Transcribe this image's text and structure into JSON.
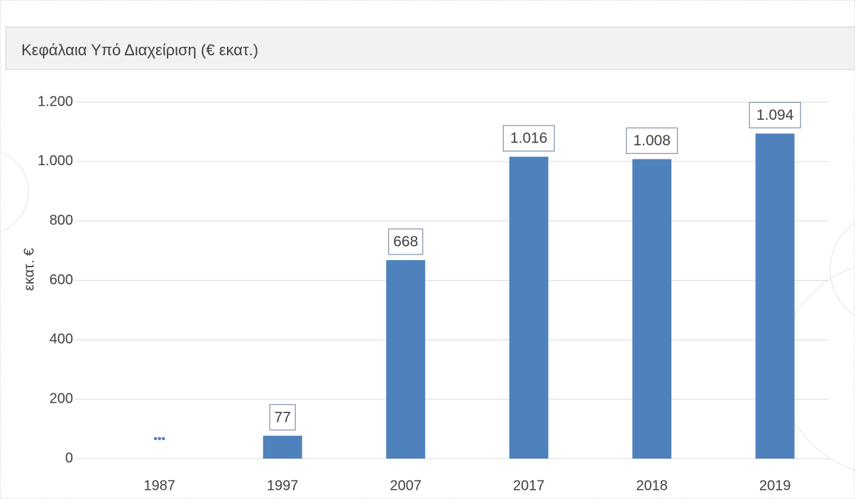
{
  "chart_data": {
    "type": "bar",
    "title": "Κεφάλαια Υπό Διαχείριση (€ εκατ.)",
    "y_label": "εκατ. €",
    "categories": [
      "1987",
      "1997",
      "2007",
      "2017",
      "2018",
      "2019"
    ],
    "values": [
      null,
      77,
      668,
      1016,
      1008,
      1094
    ],
    "value_labels": [
      "•••",
      "77",
      "668",
      "1.016",
      "1.008",
      "1.094"
    ],
    "color": "#4f81bd",
    "ylim": [
      0,
      1200
    ],
    "yticks": [
      0,
      200,
      400,
      600,
      800,
      {
        "value": 1000,
        "label": "1.000"
      },
      {
        "value": 1200,
        "label": "1.200"
      }
    ],
    "grid": true
  }
}
